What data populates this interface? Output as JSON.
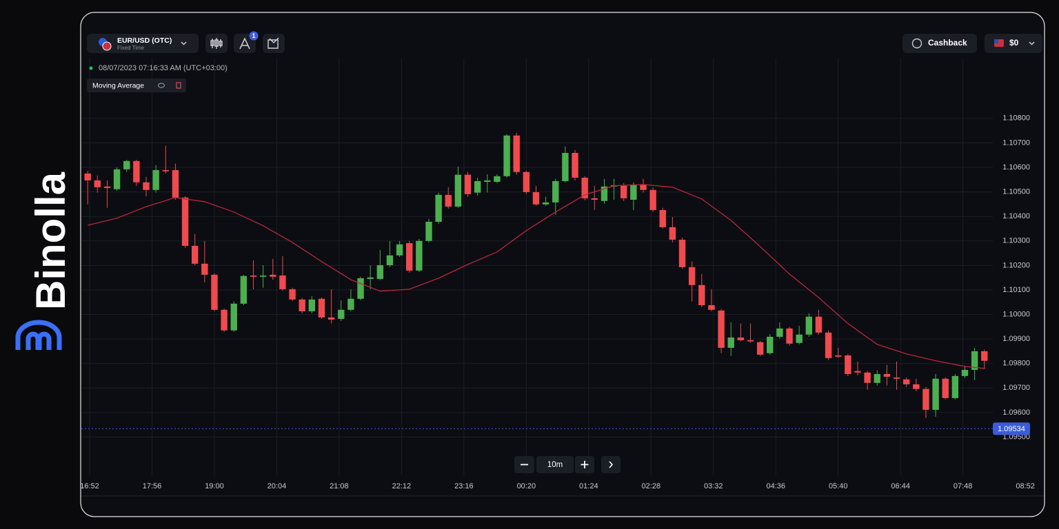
{
  "brand": {
    "name": "Binolla"
  },
  "header": {
    "pair": "EUR/USD (OTC)",
    "mode": "Fixed Time",
    "badge": 1,
    "cashback": "Cashback",
    "balance": "$0"
  },
  "timestamp": "08/07/2023 07:16:33 AM (UTC+03:00)",
  "zoom": {
    "interval": "10m"
  },
  "chart_data": {
    "type": "candlestick",
    "grid": true,
    "up_color": "#4caf50",
    "down_color": "#f04a4f",
    "xlim": [
      -8.5,
      979
    ],
    "xticks": [
      {
        "value": 0,
        "label": "16:52"
      },
      {
        "value": 64,
        "label": "17:56"
      },
      {
        "value": 128,
        "label": "19:00"
      },
      {
        "value": 192,
        "label": "20:04"
      },
      {
        "value": 256,
        "label": "21:08"
      },
      {
        "value": 320,
        "label": "22:12"
      },
      {
        "value": 384,
        "label": "23:16"
      },
      {
        "value": 448,
        "label": "00:20"
      },
      {
        "value": 512,
        "label": "01:24"
      },
      {
        "value": 576,
        "label": "02:28"
      },
      {
        "value": 640,
        "label": "03:32"
      },
      {
        "value": 704,
        "label": "04:36"
      },
      {
        "value": 768,
        "label": "05:40"
      },
      {
        "value": 832,
        "label": "06:44"
      },
      {
        "value": 896,
        "label": "07:48"
      },
      {
        "value": 960,
        "label": "08:52"
      }
    ],
    "ylim": [
      1.09344,
      1.11044
    ],
    "yticks": [
      {
        "value": 1.108,
        "label": "1.10800"
      },
      {
        "value": 1.107,
        "label": "1.10700"
      },
      {
        "value": 1.106,
        "label": "1.10600"
      },
      {
        "value": 1.105,
        "label": "1.10500"
      },
      {
        "value": 1.104,
        "label": "1.10400"
      },
      {
        "value": 1.103,
        "label": "1.10300"
      },
      {
        "value": 1.102,
        "label": "1.10200"
      },
      {
        "value": 1.101,
        "label": "1.10100"
      },
      {
        "value": 1.1,
        "label": "1.10000"
      },
      {
        "value": 1.099,
        "label": "1.09900"
      },
      {
        "value": 1.098,
        "label": "1.09800"
      },
      {
        "value": 1.097,
        "label": "1.09700"
      },
      {
        "value": 1.096,
        "label": "1.09600"
      },
      {
        "value": 1.095,
        "label": "1.09500"
      }
    ],
    "last_price": 1.09534,
    "x": [
      -2,
      8,
      18,
      28,
      38,
      48,
      58,
      68,
      78,
      88,
      98,
      108,
      118,
      128,
      138,
      148,
      158,
      168,
      178,
      188,
      198,
      208,
      218,
      228,
      238,
      248,
      258,
      268,
      278,
      288,
      298,
      308,
      318,
      328,
      338,
      348,
      358,
      368,
      378,
      388,
      398,
      408,
      418,
      428,
      438,
      448,
      458,
      468,
      478,
      488,
      498,
      508,
      518,
      528,
      538,
      548,
      558,
      568,
      578,
      588,
      598,
      608,
      618,
      628,
      638,
      648,
      658,
      668,
      678,
      688,
      698,
      708,
      718,
      728,
      738,
      748,
      758,
      768,
      778,
      788,
      798,
      808,
      818,
      828,
      838,
      848,
      858,
      868,
      878,
      888,
      898,
      908,
      918
    ],
    "open": [
      1.10575,
      1.10547,
      1.10522,
      1.10511,
      1.10592,
      1.10626,
      1.10539,
      1.10508,
      1.10589,
      1.10589,
      1.10477,
      1.1028,
      1.10207,
      1.10162,
      1.10019,
      1.09935,
      1.10044,
      1.10159,
      1.10154,
      1.10162,
      1.10159,
      1.10103,
      1.10061,
      1.10013,
      1.10064,
      1.09988,
      1.09982,
      1.10019,
      1.10064,
      1.10145,
      1.10145,
      1.10201,
      1.10241,
      1.10291,
      1.10179,
      1.103,
      1.10378,
      1.10488,
      1.1044,
      1.1057,
      1.10497,
      1.10541,
      1.10541,
      1.10564,
      1.1073,
      1.10581,
      1.10499,
      1.10449,
      1.10457,
      1.10544,
      1.10659,
      1.10558,
      1.10474,
      1.10463,
      1.10522,
      1.10525,
      1.10468,
      1.1053,
      1.10508,
      1.10426,
      1.10356,
      1.10305,
      1.10193,
      1.1012,
      1.10038,
      1.10016,
      1.09864,
      1.09906,
      1.09895,
      1.09887,
      1.09842,
      1.09909,
      1.09943,
      1.09884,
      1.09918,
      1.09991,
      1.09926,
      1.09833,
      1.09833,
      1.09769,
      1.09763,
      1.09721,
      1.09757,
      1.09743,
      1.09735,
      1.09715,
      1.09696,
      1.09611,
      1.09738,
      1.09659,
      1.09749,
      1.09774,
      1.0985
    ],
    "high": [
      1.10586,
      1.10567,
      1.10547,
      1.106,
      1.10631,
      1.10631,
      1.10561,
      1.10609,
      1.10688,
      1.10615,
      1.10482,
      1.10328,
      1.103,
      1.10168,
      1.10024,
      1.10053,
      1.10162,
      1.10221,
      1.10201,
      1.10227,
      1.10238,
      1.10109,
      1.10067,
      1.10075,
      1.10069,
      1.10103,
      1.10058,
      1.10103,
      1.10154,
      1.10201,
      1.10263,
      1.103,
      1.103,
      1.103,
      1.10308,
      1.1039,
      1.10497,
      1.10519,
      1.10603,
      1.10581,
      1.10558,
      1.10572,
      1.10572,
      1.10735,
      1.10741,
      1.10586,
      1.10525,
      1.1048,
      1.10553,
      1.10685,
      1.10671,
      1.10564,
      1.10525,
      1.10553,
      1.10553,
      1.10536,
      1.10539,
      1.10553,
      1.10519,
      1.10435,
      1.10398,
      1.10314,
      1.10216,
      1.10165,
      1.10103,
      1.10022,
      1.09968,
      1.09963,
      1.09963,
      1.09892,
      1.0992,
      1.09968,
      1.09949,
      1.09954,
      1.10005,
      1.10019,
      1.09935,
      1.09864,
      1.09839,
      1.09808,
      1.09769,
      1.09772,
      1.09794,
      1.09808,
      1.09743,
      1.09738,
      1.09704,
      1.09757,
      1.09743,
      1.09757,
      1.09791,
      1.09864,
      1.09856
    ],
    "low": [
      1.10449,
      1.10497,
      1.10435,
      1.10505,
      1.10581,
      1.10525,
      1.10482,
      1.10497,
      1.10575,
      1.10468,
      1.10272,
      1.10201,
      1.10131,
      1.10013,
      1.09929,
      1.09929,
      1.10038,
      1.10103,
      1.10109,
      1.10142,
      1.10097,
      1.10055,
      1.10005,
      1.10005,
      1.09982,
      1.09963,
      1.09974,
      1.10013,
      1.10058,
      1.10103,
      1.1014,
      1.10193,
      1.10235,
      1.10171,
      1.10173,
      1.10294,
      1.1037,
      1.10432,
      1.10435,
      1.1048,
      1.10485,
      1.10497,
      1.10536,
      1.10558,
      1.1057,
      1.10491,
      1.10443,
      1.10443,
      1.10407,
      1.10539,
      1.10547,
      1.10466,
      1.10426,
      1.10452,
      1.10468,
      1.10463,
      1.10426,
      1.10497,
      1.10418,
      1.1035,
      1.10294,
      1.10187,
      1.10053,
      1.1003,
      1.10013,
      1.09842,
      1.09831,
      1.0989,
      1.09884,
      1.09831,
      1.09836,
      1.09901,
      1.09873,
      1.09878,
      1.09909,
      1.09918,
      1.09814,
      1.09822,
      1.09749,
      1.09752,
      1.09693,
      1.0971,
      1.0971,
      1.09693,
      1.09704,
      1.09687,
      1.09578,
      1.09583,
      1.09654,
      1.09654,
      1.09741,
      1.09732,
      1.09777
    ],
    "close": [
      1.10547,
      1.10519,
      1.10516,
      1.10592,
      1.10626,
      1.10539,
      1.10508,
      1.10589,
      1.10584,
      1.10477,
      1.1028,
      1.10207,
      1.10162,
      1.10019,
      1.09935,
      1.10044,
      1.10157,
      1.10154,
      1.10159,
      1.10154,
      1.10103,
      1.10061,
      1.10013,
      1.10061,
      1.09988,
      1.09979,
      1.10019,
      1.10064,
      1.10148,
      1.10151,
      1.10201,
      1.10241,
      1.10286,
      1.10179,
      1.103,
      1.10378,
      1.10488,
      1.1044,
      1.1057,
      1.10491,
      1.10544,
      1.10547,
      1.10564,
      1.1073,
      1.10581,
      1.10499,
      1.10449,
      1.10457,
      1.10544,
      1.10659,
      1.10558,
      1.10474,
      1.10468,
      1.10522,
      1.10527,
      1.10474,
      1.1053,
      1.10508,
      1.10426,
      1.10356,
      1.10305,
      1.10193,
      1.1012,
      1.10038,
      1.10019,
      1.09864,
      1.09906,
      1.09895,
      1.0989,
      1.09836,
      1.09909,
      1.09943,
      1.09881,
      1.09918,
      1.09991,
      1.09926,
      1.09822,
      1.09828,
      1.09757,
      1.09763,
      1.09721,
      1.09757,
      1.09746,
      1.09738,
      1.09715,
      1.09696,
      1.09611,
      1.09738,
      1.09659,
      1.09749,
      1.09774,
      1.0985,
      1.09811
    ],
    "overlay": {
      "name": "Moving Average",
      "color": "#b8283a",
      "x": [
        -2,
        28,
        58,
        88,
        118,
        148,
        178,
        208,
        238,
        268,
        298,
        328,
        358,
        388,
        418,
        448,
        478,
        508,
        538,
        568,
        598,
        628,
        658,
        688,
        718,
        748,
        778,
        808,
        838,
        868,
        898,
        918
      ],
      "values": [
        1.10364,
        1.10393,
        1.1044,
        1.10477,
        1.1046,
        1.10418,
        1.10362,
        1.10294,
        1.10216,
        1.10142,
        1.10095,
        1.10103,
        1.10148,
        1.10204,
        1.10255,
        1.10342,
        1.10418,
        1.10488,
        1.10525,
        1.1053,
        1.10519,
        1.10471,
        1.10384,
        1.10277,
        1.10165,
        1.10069,
        1.09963,
        1.09878,
        1.09839,
        1.09811,
        1.09788,
        1.0978
      ]
    }
  }
}
